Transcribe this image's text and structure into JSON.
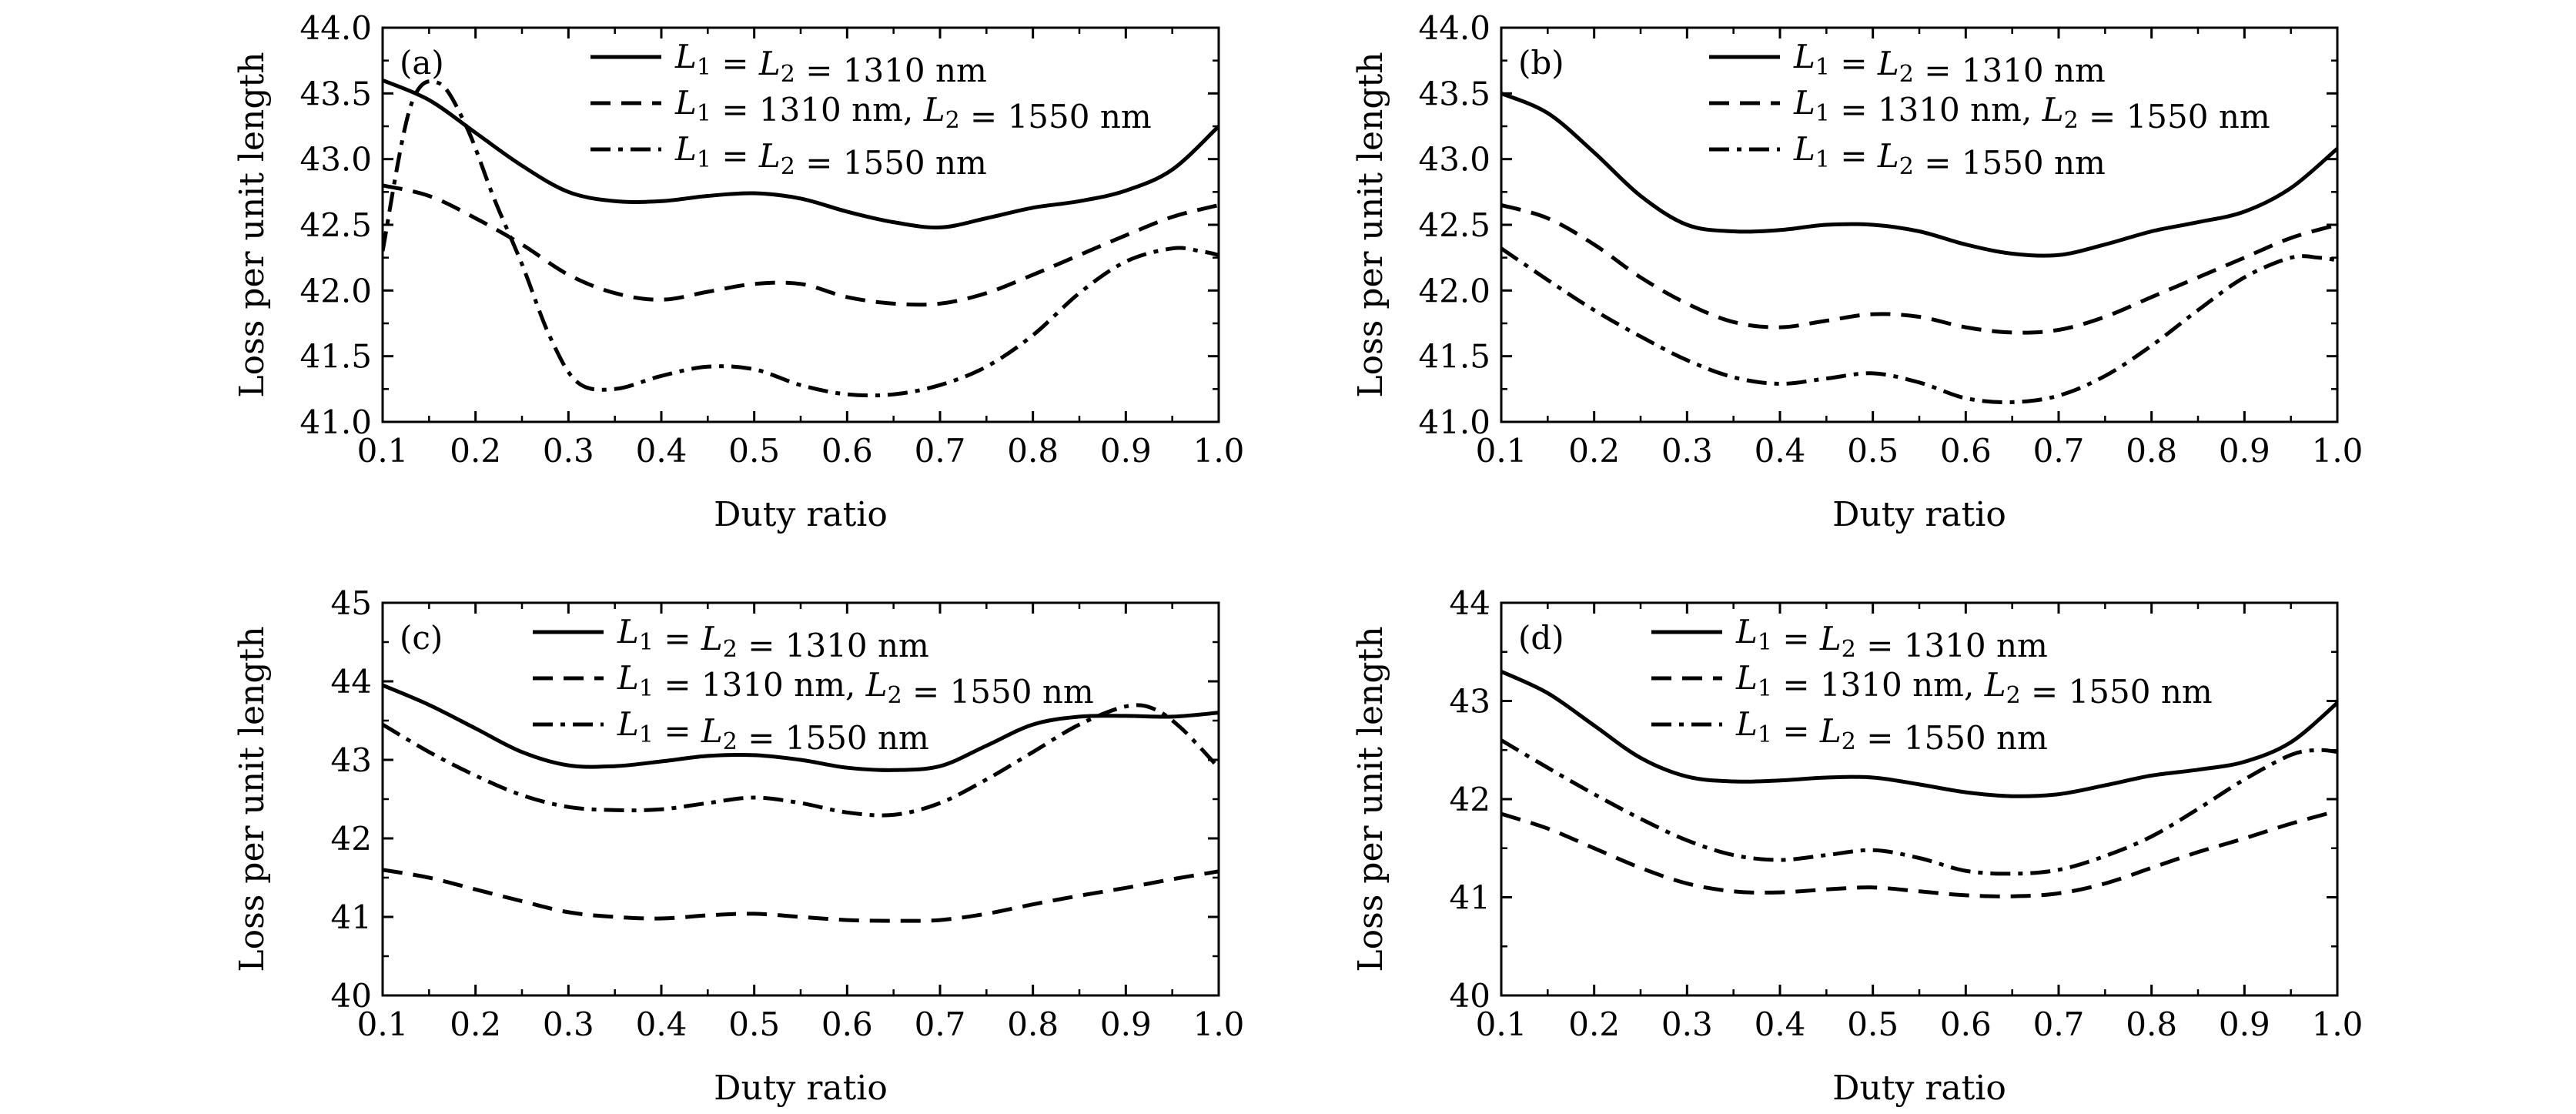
{
  "chart_data": [
    {
      "type": "line",
      "panel_label": "(a)",
      "xlabel": "Duty ratio",
      "ylabel": "Loss per unit length",
      "xlim": [
        0.1,
        1.0
      ],
      "ylim": [
        41.0,
        44.0
      ],
      "xticks": [
        "0.1",
        "0.2",
        "0.3",
        "0.4",
        "0.5",
        "0.6",
        "0.7",
        "0.8",
        "0.9",
        "1.0"
      ],
      "yticks": [
        "41.0",
        "41.5",
        "42.0",
        "42.5",
        "43.0",
        "43.5",
        "44.0"
      ],
      "legend_position": "top",
      "series": [
        {
          "name": "L1 = L2 = 1310 nm",
          "style": "solid",
          "x": [
            0.1,
            0.15,
            0.2,
            0.25,
            0.3,
            0.35,
            0.4,
            0.45,
            0.5,
            0.55,
            0.6,
            0.65,
            0.7,
            0.75,
            0.8,
            0.85,
            0.9,
            0.95,
            1.0
          ],
          "y": [
            43.6,
            43.45,
            43.2,
            42.95,
            42.75,
            42.68,
            42.68,
            42.72,
            42.74,
            42.7,
            42.6,
            42.52,
            42.48,
            42.55,
            42.63,
            42.68,
            42.76,
            42.92,
            43.25
          ]
        },
        {
          "name": "L1 = 1310 nm, L2 = 1550 nm",
          "style": "dashed",
          "x": [
            0.1,
            0.15,
            0.2,
            0.25,
            0.3,
            0.35,
            0.4,
            0.45,
            0.5,
            0.55,
            0.6,
            0.65,
            0.7,
            0.75,
            0.8,
            0.85,
            0.9,
            0.95,
            1.0
          ],
          "y": [
            42.8,
            42.72,
            42.55,
            42.35,
            42.12,
            41.98,
            41.93,
            41.99,
            42.05,
            42.05,
            41.95,
            41.9,
            41.9,
            41.98,
            42.12,
            42.27,
            42.42,
            42.56,
            42.65
          ]
        },
        {
          "name": "L1 = L2 = 1550 nm",
          "style": "dashdot",
          "x": [
            0.1,
            0.13,
            0.16,
            0.19,
            0.22,
            0.25,
            0.28,
            0.31,
            0.35,
            0.4,
            0.45,
            0.5,
            0.55,
            0.6,
            0.65,
            0.7,
            0.75,
            0.8,
            0.85,
            0.9,
            0.95,
            0.98,
            1.0
          ],
          "y": [
            42.3,
            43.4,
            43.58,
            43.25,
            42.7,
            42.2,
            41.65,
            41.3,
            41.25,
            41.35,
            41.42,
            41.4,
            41.28,
            41.21,
            41.21,
            41.28,
            41.42,
            41.66,
            41.98,
            42.22,
            42.32,
            42.3,
            42.27
          ]
        }
      ]
    },
    {
      "type": "line",
      "panel_label": "(b)",
      "xlabel": "Duty ratio",
      "ylabel": "Loss per unit length",
      "xlim": [
        0.1,
        1.0
      ],
      "ylim": [
        41.0,
        44.0
      ],
      "xticks": [
        "0.1",
        "0.2",
        "0.3",
        "0.4",
        "0.5",
        "0.6",
        "0.7",
        "0.8",
        "0.9",
        "1.0"
      ],
      "yticks": [
        "41.0",
        "41.5",
        "42.0",
        "42.5",
        "43.0",
        "43.5",
        "44.0"
      ],
      "legend_position": "top",
      "series": [
        {
          "name": "L1 = L2 = 1310 nm",
          "style": "solid",
          "x": [
            0.1,
            0.15,
            0.2,
            0.25,
            0.3,
            0.35,
            0.4,
            0.45,
            0.5,
            0.55,
            0.6,
            0.65,
            0.7,
            0.75,
            0.8,
            0.85,
            0.9,
            0.95,
            1.0
          ],
          "y": [
            43.5,
            43.35,
            43.05,
            42.72,
            42.5,
            42.45,
            42.46,
            42.5,
            42.5,
            42.45,
            42.35,
            42.28,
            42.27,
            42.35,
            42.45,
            42.52,
            42.6,
            42.78,
            43.08
          ]
        },
        {
          "name": "L1 = 1310 nm, L2 = 1550 nm",
          "style": "dashed",
          "x": [
            0.1,
            0.15,
            0.2,
            0.25,
            0.3,
            0.35,
            0.4,
            0.45,
            0.5,
            0.55,
            0.6,
            0.65,
            0.7,
            0.75,
            0.8,
            0.85,
            0.9,
            0.95,
            1.0
          ],
          "y": [
            42.65,
            42.55,
            42.35,
            42.1,
            41.9,
            41.76,
            41.72,
            41.77,
            41.82,
            41.8,
            41.72,
            41.68,
            41.7,
            41.8,
            41.95,
            42.1,
            42.25,
            42.4,
            42.5
          ]
        },
        {
          "name": "L1 = L2 = 1550 nm",
          "style": "dashdot",
          "x": [
            0.1,
            0.15,
            0.2,
            0.25,
            0.3,
            0.35,
            0.4,
            0.45,
            0.5,
            0.55,
            0.6,
            0.65,
            0.7,
            0.75,
            0.8,
            0.85,
            0.9,
            0.95,
            0.98,
            1.0
          ],
          "y": [
            42.32,
            42.08,
            41.85,
            41.65,
            41.47,
            41.34,
            41.29,
            41.33,
            41.37,
            41.3,
            41.18,
            41.15,
            41.2,
            41.35,
            41.58,
            41.85,
            42.1,
            42.25,
            42.25,
            42.23
          ]
        }
      ]
    },
    {
      "type": "line",
      "panel_label": "(c)",
      "xlabel": "Duty ratio",
      "ylabel": "Loss per unit length",
      "xlim": [
        0.1,
        1.0
      ],
      "ylim": [
        40,
        45
      ],
      "xticks": [
        "0.1",
        "0.2",
        "0.3",
        "0.4",
        "0.5",
        "0.6",
        "0.7",
        "0.8",
        "0.9",
        "1.0"
      ],
      "yticks": [
        "40",
        "41",
        "42",
        "43",
        "44",
        "45"
      ],
      "legend_position": "top",
      "series": [
        {
          "name": "L1 = L2 = 1310 nm",
          "style": "solid",
          "x": [
            0.1,
            0.15,
            0.2,
            0.25,
            0.3,
            0.35,
            0.4,
            0.45,
            0.5,
            0.55,
            0.6,
            0.65,
            0.7,
            0.75,
            0.8,
            0.85,
            0.9,
            0.95,
            1.0
          ],
          "y": [
            43.95,
            43.7,
            43.4,
            43.1,
            42.93,
            42.92,
            42.98,
            43.05,
            43.06,
            43.0,
            42.9,
            42.87,
            42.92,
            43.18,
            43.45,
            43.55,
            43.56,
            43.55,
            43.6
          ]
        },
        {
          "name": "L1 = 1310 nm, L2 = 1550 nm",
          "style": "dashed",
          "x": [
            0.1,
            0.15,
            0.2,
            0.25,
            0.3,
            0.35,
            0.4,
            0.45,
            0.5,
            0.55,
            0.6,
            0.65,
            0.7,
            0.75,
            0.8,
            0.85,
            0.9,
            0.95,
            1.0
          ],
          "y": [
            41.6,
            41.5,
            41.35,
            41.2,
            41.06,
            41.0,
            40.98,
            41.02,
            41.04,
            41.0,
            40.96,
            40.95,
            40.96,
            41.04,
            41.16,
            41.27,
            41.37,
            41.48,
            41.58
          ]
        },
        {
          "name": "L1 = L2 = 1550 nm",
          "style": "dashdot",
          "x": [
            0.1,
            0.15,
            0.2,
            0.25,
            0.3,
            0.35,
            0.4,
            0.45,
            0.5,
            0.55,
            0.6,
            0.65,
            0.7,
            0.75,
            0.8,
            0.85,
            0.9,
            0.93,
            0.96,
            1.0
          ],
          "y": [
            43.45,
            43.1,
            42.8,
            42.55,
            42.4,
            42.36,
            42.37,
            42.45,
            42.52,
            42.45,
            42.33,
            42.3,
            42.45,
            42.75,
            43.1,
            43.45,
            43.68,
            43.65,
            43.4,
            42.9
          ]
        }
      ]
    },
    {
      "type": "line",
      "panel_label": "(d)",
      "xlabel": "Duty ratio",
      "ylabel": "Loss per unit length",
      "xlim": [
        0.1,
        1.0
      ],
      "ylim": [
        40,
        44
      ],
      "xticks": [
        "0.1",
        "0.2",
        "0.3",
        "0.4",
        "0.5",
        "0.6",
        "0.7",
        "0.8",
        "0.9",
        "1.0"
      ],
      "yticks": [
        "40",
        "41",
        "42",
        "43",
        "44"
      ],
      "legend_position": "top",
      "series": [
        {
          "name": "L1 = L2 = 1310 nm",
          "style": "solid",
          "x": [
            0.1,
            0.15,
            0.2,
            0.25,
            0.3,
            0.35,
            0.4,
            0.45,
            0.5,
            0.55,
            0.6,
            0.65,
            0.7,
            0.75,
            0.8,
            0.85,
            0.9,
            0.95,
            1.0
          ],
          "y": [
            43.3,
            43.08,
            42.75,
            42.42,
            42.23,
            42.18,
            42.19,
            42.22,
            42.22,
            42.15,
            42.07,
            42.03,
            42.05,
            42.14,
            42.24,
            42.3,
            42.38,
            42.58,
            42.98
          ]
        },
        {
          "name": "L1 = 1310 nm, L2 = 1550 nm",
          "style": "dashed",
          "x": [
            0.1,
            0.15,
            0.2,
            0.25,
            0.3,
            0.35,
            0.4,
            0.45,
            0.5,
            0.55,
            0.6,
            0.65,
            0.7,
            0.75,
            0.8,
            0.85,
            0.9,
            0.95,
            1.0
          ],
          "y": [
            41.85,
            41.7,
            41.5,
            41.3,
            41.14,
            41.06,
            41.05,
            41.08,
            41.1,
            41.06,
            41.02,
            41.01,
            41.04,
            41.14,
            41.3,
            41.46,
            41.6,
            41.75,
            41.88
          ]
        },
        {
          "name": "L1 = L2 = 1550 nm",
          "style": "dashdot",
          "x": [
            0.1,
            0.15,
            0.2,
            0.25,
            0.3,
            0.35,
            0.4,
            0.45,
            0.5,
            0.55,
            0.6,
            0.65,
            0.7,
            0.75,
            0.8,
            0.85,
            0.9,
            0.95,
            0.98,
            1.0
          ],
          "y": [
            42.6,
            42.32,
            42.05,
            41.8,
            41.58,
            41.43,
            41.38,
            41.43,
            41.48,
            41.4,
            41.27,
            41.24,
            41.28,
            41.42,
            41.62,
            41.9,
            42.2,
            42.45,
            42.5,
            42.48
          ]
        }
      ]
    }
  ]
}
